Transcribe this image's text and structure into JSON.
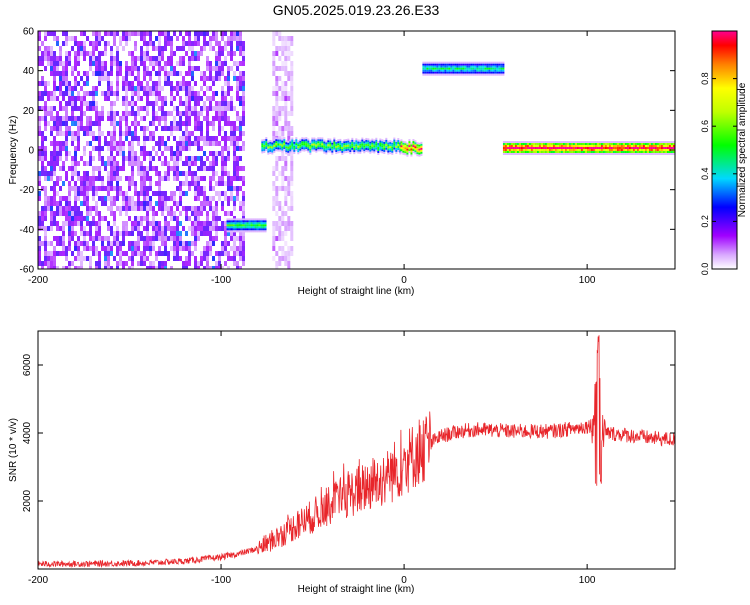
{
  "title": "GN05.2025.019.23.26.E33",
  "chart_data": [
    {
      "type": "heatmap",
      "xlabel": "Height of straight line (km)",
      "ylabel": "Frequency (Hz)",
      "xlim": [
        -200,
        148
      ],
      "ylim": [
        -60,
        60
      ],
      "xticks": [
        -200,
        -100,
        0,
        100
      ],
      "yticks": [
        -60,
        -40,
        -20,
        0,
        20,
        40,
        60
      ],
      "colorbar": {
        "label": "Normalized spectral amplitude",
        "range": [
          0.0,
          1.0
        ],
        "ticks": [
          "0.0",
          "0.2",
          "0.4",
          "0.6",
          "0.8"
        ],
        "colors": [
          "#ffffff",
          "#b000ff",
          "#0000ff",
          "#00e0ff",
          "#00ff00",
          "#ffff00",
          "#ff0000",
          "#ff0080"
        ]
      },
      "features": [
        {
          "kind": "noise",
          "x": [
            -200,
            -88
          ],
          "y": [
            -60,
            60
          ],
          "amplitude": 0.15
        },
        {
          "kind": "noise",
          "x": [
            -72,
            -62
          ],
          "y": [
            -60,
            60
          ],
          "amplitude": 0.06
        },
        {
          "kind": "band",
          "x": [
            -97,
            -76
          ],
          "y": -38,
          "amplitude": 0.45
        },
        {
          "kind": "band",
          "x": [
            -78,
            -2
          ],
          "y": 2,
          "amplitude": 0.5
        },
        {
          "kind": "band",
          "x": [
            -2,
            10
          ],
          "y": 1,
          "amplitude": 0.8
        },
        {
          "kind": "band",
          "x": [
            10,
            54
          ],
          "y": 41,
          "amplitude": 0.4
        },
        {
          "kind": "band",
          "x": [
            54,
            148
          ],
          "y": 1,
          "amplitude": 0.9
        }
      ]
    },
    {
      "type": "line",
      "xlabel": "Height of straight line (km)",
      "ylabel": "SNR (10 * v/v)",
      "xlim": [
        -200,
        148
      ],
      "ylim": [
        0,
        7000
      ],
      "xticks": [
        -200,
        -100,
        0,
        100
      ],
      "yticks": [
        2000,
        4000,
        6000
      ],
      "color": "#e8252a",
      "envelope": [
        {
          "x": -200,
          "y": 150
        },
        {
          "x": -180,
          "y": 150
        },
        {
          "x": -160,
          "y": 160
        },
        {
          "x": -140,
          "y": 180
        },
        {
          "x": -120,
          "y": 230
        },
        {
          "x": -100,
          "y": 350
        },
        {
          "x": -90,
          "y": 450
        },
        {
          "x": -80,
          "y": 600
        },
        {
          "x": -70,
          "y": 900
        },
        {
          "x": -60,
          "y": 1250
        },
        {
          "x": -50,
          "y": 1550
        },
        {
          "x": -40,
          "y": 1900
        },
        {
          "x": -30,
          "y": 2200
        },
        {
          "x": -20,
          "y": 2450
        },
        {
          "x": -10,
          "y": 2700
        },
        {
          "x": 0,
          "y": 3100
        },
        {
          "x": 10,
          "y": 3550
        },
        {
          "x": 20,
          "y": 3900
        },
        {
          "x": 30,
          "y": 4050
        },
        {
          "x": 40,
          "y": 4100
        },
        {
          "x": 60,
          "y": 4050
        },
        {
          "x": 80,
          "y": 4050
        },
        {
          "x": 95,
          "y": 4150
        },
        {
          "x": 104,
          "y": 4250
        },
        {
          "x": 110,
          "y": 4000
        },
        {
          "x": 120,
          "y": 3950
        },
        {
          "x": 135,
          "y": 3850
        },
        {
          "x": 148,
          "y": 3800
        }
      ],
      "peak": {
        "x": 106,
        "y": 6950
      },
      "dip": {
        "x": 106,
        "y": 2400
      }
    }
  ]
}
